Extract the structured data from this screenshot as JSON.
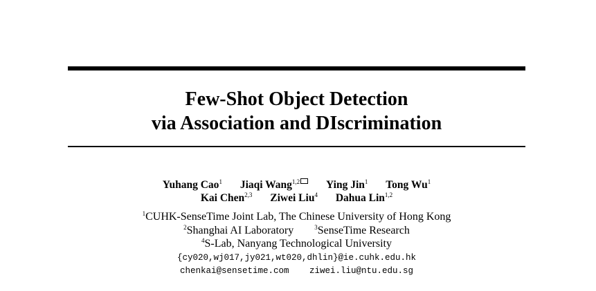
{
  "title": {
    "line1": "Few-Shot Object Detection",
    "line2": "via Association and DIscrimination"
  },
  "authors": [
    {
      "name": "Yuhang Cao",
      "aff": "1"
    },
    {
      "name": "Jiaqi Wang",
      "aff": "1,2",
      "corresponding_icon": "envelope-icon"
    },
    {
      "name": "Ying Jin",
      "aff": "1"
    },
    {
      "name": "Tong Wu",
      "aff": "1"
    },
    {
      "name": "Kai Chen",
      "aff": "2,3"
    },
    {
      "name": "Ziwei Liu",
      "aff": "4"
    },
    {
      "name": "Dahua Lin",
      "aff": "1,2"
    }
  ],
  "affiliations": [
    {
      "num": "1",
      "text": "CUHK-SenseTime Joint Lab, The Chinese University of Hong Kong"
    },
    {
      "num": "2",
      "text": "Shanghai AI Laboratory"
    },
    {
      "num": "3",
      "text": "SenseTime Research"
    },
    {
      "num": "4",
      "text": "S-Lab, Nanyang Technological University"
    }
  ],
  "emails": [
    "{cy020,wj017,jy021,wt020,dhlin}@ie.cuhk.edu.hk",
    "chenkai@sensetime.com",
    "ziwei.liu@ntu.edu.sg"
  ]
}
